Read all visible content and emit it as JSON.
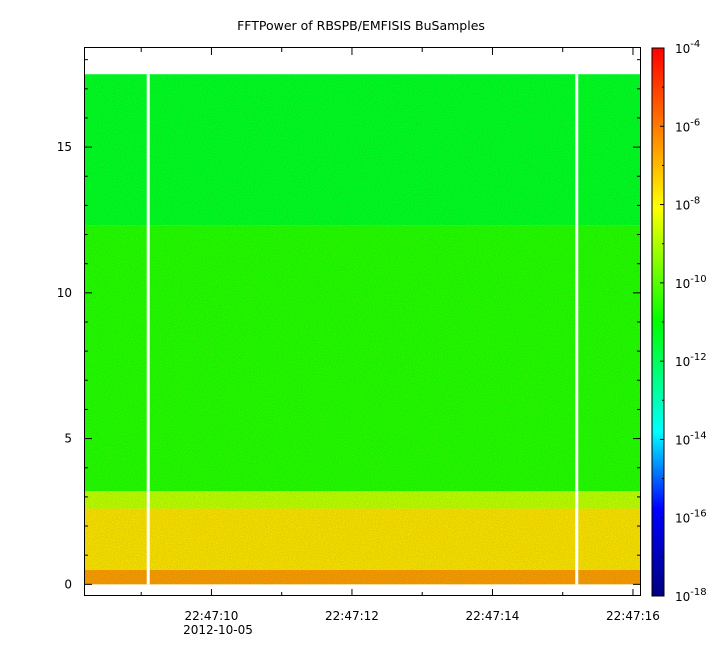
{
  "chart_data": {
    "type": "heatmap",
    "title": "FFTPower of RBSPB/EMFISIS  BuSamples",
    "xlabel": "",
    "ylabel": "",
    "x_start": "22:47:08.2",
    "x_end": "22:47:16.1",
    "x_ticks": [
      "22:47:10",
      "22:47:12",
      "22:47:14",
      "22:47:16"
    ],
    "x_date_label": "2012-10-05",
    "ylim": [
      -0.4,
      18.4
    ],
    "y_ticks": [
      "0",
      "5",
      "10",
      "15"
    ],
    "data_extent_y": [
      0,
      17.5
    ],
    "gaps_x": [
      "22:47:09.1",
      "22:47:15.2"
    ],
    "bands": [
      {
        "y_range": [
          0,
          0.5
        ],
        "log10_power": -6.5
      },
      {
        "y_range": [
          0.5,
          2.6
        ],
        "log10_power": -7.6
      },
      {
        "y_range": [
          2.6,
          3.2
        ],
        "log10_power": -8.8
      },
      {
        "y_range": [
          3.2,
          12.3
        ],
        "log10_power": -10.6
      },
      {
        "y_range": [
          12.3,
          17.5
        ],
        "log10_power": -11.4
      }
    ],
    "colorbar": {
      "scale": "log",
      "range": [
        1e-18,
        0.0001
      ],
      "tick_labels": [
        "10-4",
        "10-6",
        "10-8",
        "10-10",
        "10-12",
        "10-14",
        "10-16",
        "10-18"
      ],
      "colors": [
        "#000080",
        "#0000ff",
        "#00ffff",
        "#00ff00",
        "#ffff00",
        "#ff8000",
        "#ff0000"
      ]
    }
  }
}
